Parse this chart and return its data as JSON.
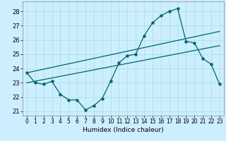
{
  "title": "",
  "xlabel": "Humidex (Indice chaleur)",
  "bg_color": "#cceeff",
  "line_color": "#006666",
  "grid_color": "#aadddd",
  "xlim": [
    -0.5,
    23.5
  ],
  "ylim": [
    20.7,
    28.7
  ],
  "yticks": [
    21,
    22,
    23,
    24,
    25,
    26,
    27,
    28
  ],
  "xticks": [
    0,
    1,
    2,
    3,
    4,
    5,
    6,
    7,
    8,
    9,
    10,
    11,
    12,
    13,
    14,
    15,
    16,
    17,
    18,
    19,
    20,
    21,
    22,
    23
  ],
  "main_x": [
    0,
    1,
    2,
    3,
    4,
    5,
    6,
    7,
    8,
    9,
    10,
    11,
    12,
    13,
    14,
    15,
    16,
    17,
    18,
    19,
    20,
    21,
    22,
    23
  ],
  "main_y": [
    23.7,
    23.0,
    22.9,
    23.1,
    22.2,
    21.8,
    21.8,
    21.1,
    21.4,
    21.9,
    23.1,
    24.4,
    24.9,
    25.0,
    26.3,
    27.2,
    27.7,
    28.0,
    28.2,
    25.9,
    25.8,
    24.7,
    24.3,
    22.9
  ],
  "line1_x": [
    0,
    23
  ],
  "line1_y": [
    23.7,
    26.6
  ],
  "line2_x": [
    0,
    23
  ],
  "line2_y": [
    23.0,
    25.6
  ]
}
